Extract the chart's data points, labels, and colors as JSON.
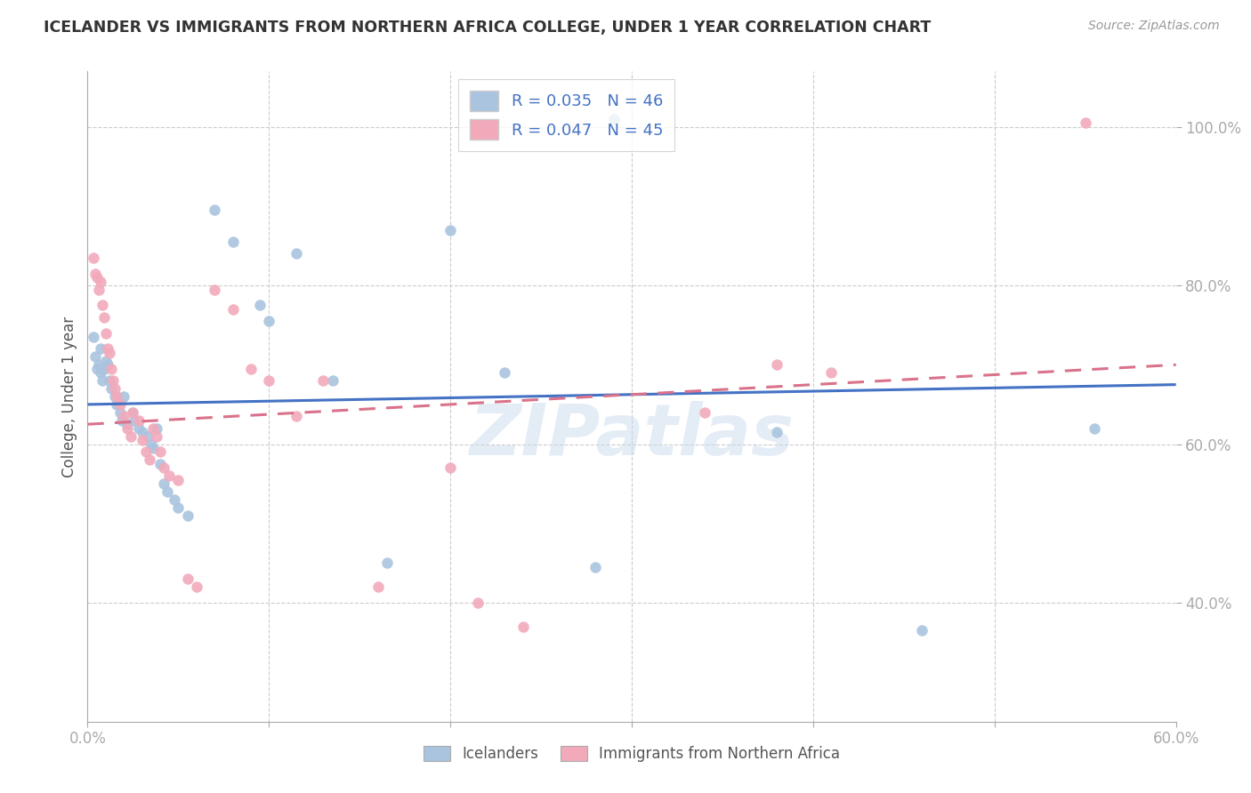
{
  "title": "ICELANDER VS IMMIGRANTS FROM NORTHERN AFRICA COLLEGE, UNDER 1 YEAR CORRELATION CHART",
  "source": "Source: ZipAtlas.com",
  "ylabel": "College, Under 1 year",
  "xlim": [
    0.0,
    0.6
  ],
  "ylim": [
    0.25,
    1.07
  ],
  "xtick_positions": [
    0.0,
    0.1,
    0.2,
    0.3,
    0.4,
    0.5,
    0.6
  ],
  "xticklabels": [
    "0.0%",
    "",
    "",
    "",
    "",
    "",
    "60.0%"
  ],
  "ytick_positions": [
    0.4,
    0.6,
    0.8,
    1.0
  ],
  "yticklabels": [
    "40.0%",
    "60.0%",
    "80.0%",
    "100.0%"
  ],
  "legend_labels": [
    "Icelanders",
    "Immigrants from Northern Africa"
  ],
  "legend_r": [
    "R = 0.035",
    "R = 0.047"
  ],
  "legend_n": [
    "N = 46",
    "N = 45"
  ],
  "blue_color": "#aac4df",
  "pink_color": "#f2aabb",
  "blue_line_color": "#4472c4",
  "pink_line_color": "#d9728a",
  "marker_size": 9,
  "blue_scatter": [
    [
      0.003,
      0.735
    ],
    [
      0.004,
      0.71
    ],
    [
      0.005,
      0.695
    ],
    [
      0.006,
      0.7
    ],
    [
      0.007,
      0.72
    ],
    [
      0.007,
      0.69
    ],
    [
      0.008,
      0.68
    ],
    [
      0.009,
      0.695
    ],
    [
      0.01,
      0.705
    ],
    [
      0.011,
      0.7
    ],
    [
      0.012,
      0.68
    ],
    [
      0.013,
      0.67
    ],
    [
      0.015,
      0.66
    ],
    [
      0.016,
      0.65
    ],
    [
      0.018,
      0.64
    ],
    [
      0.019,
      0.63
    ],
    [
      0.02,
      0.66
    ],
    [
      0.022,
      0.625
    ],
    [
      0.025,
      0.64
    ],
    [
      0.026,
      0.63
    ],
    [
      0.028,
      0.62
    ],
    [
      0.03,
      0.615
    ],
    [
      0.033,
      0.61
    ],
    [
      0.035,
      0.6
    ],
    [
      0.036,
      0.595
    ],
    [
      0.038,
      0.62
    ],
    [
      0.04,
      0.575
    ],
    [
      0.042,
      0.55
    ],
    [
      0.044,
      0.54
    ],
    [
      0.048,
      0.53
    ],
    [
      0.05,
      0.52
    ],
    [
      0.055,
      0.51
    ],
    [
      0.07,
      0.895
    ],
    [
      0.08,
      0.855
    ],
    [
      0.095,
      0.775
    ],
    [
      0.1,
      0.755
    ],
    [
      0.115,
      0.84
    ],
    [
      0.135,
      0.68
    ],
    [
      0.165,
      0.45
    ],
    [
      0.2,
      0.87
    ],
    [
      0.23,
      0.69
    ],
    [
      0.28,
      0.445
    ],
    [
      0.29,
      1.01
    ],
    [
      0.38,
      0.615
    ],
    [
      0.46,
      0.365
    ],
    [
      0.555,
      0.62
    ]
  ],
  "pink_scatter": [
    [
      0.003,
      0.835
    ],
    [
      0.004,
      0.815
    ],
    [
      0.005,
      0.81
    ],
    [
      0.006,
      0.795
    ],
    [
      0.007,
      0.805
    ],
    [
      0.008,
      0.775
    ],
    [
      0.009,
      0.76
    ],
    [
      0.01,
      0.74
    ],
    [
      0.011,
      0.72
    ],
    [
      0.012,
      0.715
    ],
    [
      0.013,
      0.695
    ],
    [
      0.014,
      0.68
    ],
    [
      0.015,
      0.67
    ],
    [
      0.016,
      0.66
    ],
    [
      0.018,
      0.65
    ],
    [
      0.02,
      0.635
    ],
    [
      0.022,
      0.62
    ],
    [
      0.024,
      0.61
    ],
    [
      0.025,
      0.64
    ],
    [
      0.028,
      0.63
    ],
    [
      0.03,
      0.605
    ],
    [
      0.032,
      0.59
    ],
    [
      0.034,
      0.58
    ],
    [
      0.036,
      0.62
    ],
    [
      0.038,
      0.61
    ],
    [
      0.04,
      0.59
    ],
    [
      0.042,
      0.57
    ],
    [
      0.045,
      0.56
    ],
    [
      0.05,
      0.555
    ],
    [
      0.055,
      0.43
    ],
    [
      0.06,
      0.42
    ],
    [
      0.07,
      0.795
    ],
    [
      0.08,
      0.77
    ],
    [
      0.09,
      0.695
    ],
    [
      0.1,
      0.68
    ],
    [
      0.115,
      0.635
    ],
    [
      0.13,
      0.68
    ],
    [
      0.16,
      0.42
    ],
    [
      0.2,
      0.57
    ],
    [
      0.215,
      0.4
    ],
    [
      0.24,
      0.37
    ],
    [
      0.34,
      0.64
    ],
    [
      0.38,
      0.7
    ],
    [
      0.41,
      0.69
    ],
    [
      0.55,
      1.005
    ]
  ],
  "blue_trendline": [
    [
      0.0,
      0.65
    ],
    [
      0.6,
      0.675
    ]
  ],
  "pink_trendline": [
    [
      0.0,
      0.625
    ],
    [
      0.6,
      0.7
    ]
  ],
  "watermark": "ZIPatlas",
  "background_color": "#ffffff",
  "grid_color": "#cccccc"
}
